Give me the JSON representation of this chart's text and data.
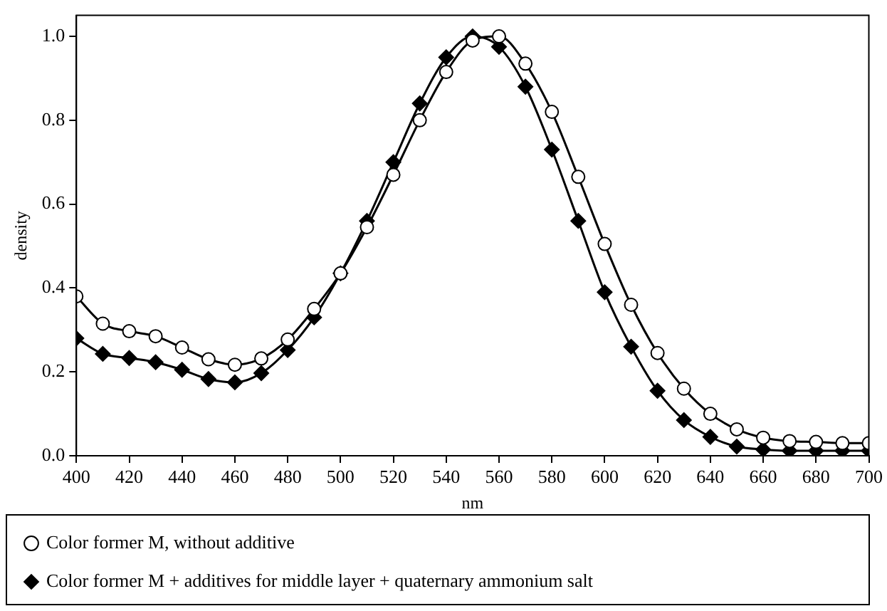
{
  "chart_data": {
    "type": "line",
    "xlabel": "nm",
    "ylabel": "density",
    "x": [
      400,
      410,
      420,
      430,
      440,
      450,
      460,
      470,
      480,
      490,
      500,
      510,
      520,
      530,
      540,
      550,
      560,
      570,
      580,
      590,
      600,
      610,
      620,
      630,
      640,
      650,
      660,
      670,
      680,
      690,
      700
    ],
    "series": [
      {
        "name": "Color former M, without additive",
        "color": "#000000",
        "marker": "circle",
        "values": [
          0.38,
          0.315,
          0.297,
          0.285,
          0.258,
          0.23,
          0.217,
          0.232,
          0.277,
          0.35,
          0.435,
          0.545,
          0.67,
          0.8,
          0.915,
          0.99,
          1.0,
          0.935,
          0.82,
          0.665,
          0.505,
          0.36,
          0.245,
          0.16,
          0.1,
          0.063,
          0.043,
          0.035,
          0.033,
          0.03,
          0.03
        ]
      },
      {
        "name": "Color former M + additives for middle layer + quaternary ammonium salt",
        "color": "#000000",
        "marker": "diamond",
        "values": [
          0.28,
          0.243,
          0.233,
          0.223,
          0.205,
          0.183,
          0.175,
          0.197,
          0.252,
          0.33,
          0.435,
          0.56,
          0.7,
          0.84,
          0.95,
          1.0,
          0.975,
          0.88,
          0.73,
          0.56,
          0.39,
          0.26,
          0.155,
          0.085,
          0.045,
          0.022,
          0.015,
          0.012,
          0.012,
          0.012,
          0.012
        ]
      }
    ],
    "xlim": [
      400,
      700
    ],
    "xticks": [
      400,
      420,
      440,
      460,
      480,
      500,
      520,
      540,
      560,
      580,
      600,
      620,
      640,
      660,
      680,
      700
    ],
    "ylim": [
      0,
      1.05
    ],
    "yticks": [
      {
        "value": 0,
        "label": "0.0"
      },
      {
        "value": 0.2,
        "label": "0.2"
      },
      {
        "value": 0.4,
        "label": "0.4"
      },
      {
        "value": 0.6,
        "label": "0.6"
      },
      {
        "value": 0.8,
        "label": "0.8"
      },
      {
        "value": 1,
        "label": "1.0"
      }
    ],
    "grid": false,
    "legend": "bottom",
    "line_style": "solid"
  }
}
